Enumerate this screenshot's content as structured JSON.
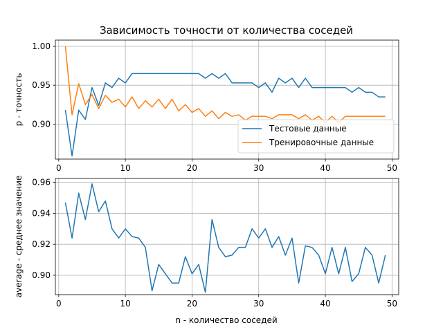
{
  "title": "Зависимость точности от количества соседей",
  "colors": {
    "blue": "#1f77b4",
    "orange": "#ff7f0e",
    "grid": "#b0b0b0"
  },
  "chart_data": [
    {
      "type": "line",
      "title": "Зависимость точности от количества соседей",
      "xlabel": "",
      "ylabel": "p - точность",
      "xlim": [
        -0.5,
        51
      ],
      "ylim": [
        0.855,
        1.008
      ],
      "xticks": [
        0,
        10,
        20,
        30,
        40,
        50
      ],
      "yticks": [
        0.9,
        0.95,
        1.0
      ],
      "ytick_labels": [
        "0.90",
        "0.95",
        "1.00"
      ],
      "grid": true,
      "legend": "bottom-right",
      "x": [
        1,
        2,
        3,
        4,
        5,
        6,
        7,
        8,
        9,
        10,
        11,
        12,
        13,
        14,
        15,
        16,
        17,
        18,
        19,
        20,
        21,
        22,
        23,
        24,
        25,
        26,
        27,
        28,
        29,
        30,
        31,
        32,
        33,
        34,
        35,
        36,
        37,
        38,
        39,
        40,
        41,
        42,
        43,
        44,
        45,
        46,
        47,
        48,
        49
      ],
      "series": [
        {
          "name": "Тестовые данные",
          "color": "#1f77b4",
          "values": [
            0.918,
            0.859,
            0.918,
            0.906,
            0.947,
            0.924,
            0.953,
            0.947,
            0.959,
            0.953,
            0.965,
            0.965,
            0.965,
            0.965,
            0.965,
            0.965,
            0.965,
            0.965,
            0.965,
            0.965,
            0.965,
            0.959,
            0.965,
            0.959,
            0.965,
            0.953,
            0.953,
            0.953,
            0.953,
            0.947,
            0.953,
            0.941,
            0.959,
            0.953,
            0.959,
            0.947,
            0.959,
            0.947,
            0.947,
            0.947,
            0.947,
            0.947,
            0.947,
            0.941,
            0.947,
            0.941,
            0.941,
            0.935,
            0.935
          ]
        },
        {
          "name": "Тренировочные данные",
          "color": "#ff7f0e",
          "values": [
            1.0,
            0.912,
            0.952,
            0.925,
            0.938,
            0.92,
            0.937,
            0.928,
            0.932,
            0.922,
            0.935,
            0.92,
            0.93,
            0.922,
            0.932,
            0.92,
            0.932,
            0.917,
            0.925,
            0.915,
            0.92,
            0.91,
            0.917,
            0.907,
            0.915,
            0.91,
            0.912,
            0.905,
            0.91,
            0.91,
            0.91,
            0.907,
            0.912,
            0.912,
            0.912,
            0.907,
            0.912,
            0.905,
            0.91,
            0.902,
            0.91,
            0.902,
            0.91,
            0.91,
            0.91,
            0.91,
            0.91,
            0.91,
            0.91
          ]
        }
      ]
    },
    {
      "type": "line",
      "title": "",
      "xlabel": "n - количество соседей",
      "ylabel": "average - среднее значение",
      "xlim": [
        -0.5,
        51
      ],
      "ylim": [
        0.8875,
        0.9625
      ],
      "xticks": [
        0,
        10,
        20,
        30,
        40,
        50
      ],
      "yticks": [
        0.9,
        0.92,
        0.94,
        0.96
      ],
      "ytick_labels": [
        "0.90",
        "0.92",
        "0.94",
        "0.96"
      ],
      "grid": true,
      "legend": "none",
      "x": [
        1,
        2,
        3,
        4,
        5,
        6,
        7,
        8,
        9,
        10,
        11,
        12,
        13,
        14,
        15,
        16,
        17,
        18,
        19,
        20,
        21,
        22,
        23,
        24,
        25,
        26,
        27,
        28,
        29,
        30,
        31,
        32,
        33,
        34,
        35,
        36,
        37,
        38,
        39,
        40,
        41,
        42,
        43,
        44,
        45,
        46,
        47,
        48,
        49
      ],
      "series": [
        {
          "name": "",
          "color": "#1f77b4",
          "values": [
            0.947,
            0.924,
            0.953,
            0.936,
            0.959,
            0.941,
            0.948,
            0.93,
            0.924,
            0.93,
            0.925,
            0.924,
            0.918,
            0.89,
            0.907,
            0.901,
            0.895,
            0.895,
            0.912,
            0.901,
            0.907,
            0.889,
            0.936,
            0.918,
            0.912,
            0.913,
            0.918,
            0.918,
            0.93,
            0.924,
            0.93,
            0.918,
            0.925,
            0.913,
            0.924,
            0.895,
            0.919,
            0.918,
            0.913,
            0.901,
            0.918,
            0.901,
            0.918,
            0.896,
            0.901,
            0.918,
            0.913,
            0.895,
            0.913
          ]
        }
      ]
    }
  ]
}
